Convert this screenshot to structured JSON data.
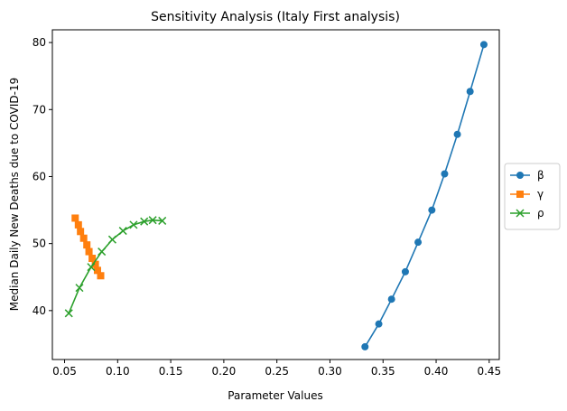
{
  "chart_data": {
    "type": "line",
    "title": "Sensitivity Analysis (Italy First analysis)",
    "xlabel": "Parameter Values",
    "ylabel": "Median Daily New Deaths due to COVID-19",
    "xlim": [
      0.0385,
      0.4595
    ],
    "ylim": [
      32.7,
      81.9
    ],
    "xticks": [
      0.05,
      0.1,
      0.15,
      0.2,
      0.25,
      0.3,
      0.35,
      0.4,
      0.45
    ],
    "xtick_labels": [
      "0.05",
      "0.10",
      "0.15",
      "0.20",
      "0.25",
      "0.30",
      "0.35",
      "0.40",
      "0.45"
    ],
    "yticks": [
      40,
      50,
      60,
      70,
      80
    ],
    "ytick_labels": [
      "40",
      "50",
      "60",
      "70",
      "80"
    ],
    "grid": false,
    "legend_position": "right",
    "series": [
      {
        "name": "β",
        "color": "#1f77b4",
        "marker": "circle",
        "x": [
          0.333,
          0.346,
          0.358,
          0.371,
          0.383,
          0.396,
          0.408,
          0.42,
          0.432,
          0.445
        ],
        "y": [
          34.6,
          38.0,
          41.7,
          45.8,
          50.2,
          55.0,
          60.4,
          66.3,
          72.7,
          79.7
        ]
      },
      {
        "name": "γ",
        "color": "#ff7f0e",
        "marker": "square",
        "x": [
          0.06,
          0.063,
          0.065,
          0.068,
          0.071,
          0.073,
          0.076,
          0.079,
          0.081,
          0.084
        ],
        "y": [
          53.8,
          52.8,
          51.8,
          50.8,
          49.8,
          48.8,
          47.8,
          46.9,
          46.0,
          45.2
        ]
      },
      {
        "name": "ρ",
        "color": "#2ca02c",
        "marker": "x",
        "x": [
          0.054,
          0.064,
          0.075,
          0.085,
          0.095,
          0.105,
          0.115,
          0.125,
          0.133,
          0.142
        ],
        "y": [
          39.6,
          43.4,
          46.5,
          48.8,
          50.6,
          51.9,
          52.8,
          53.3,
          53.5,
          53.4
        ]
      }
    ]
  }
}
